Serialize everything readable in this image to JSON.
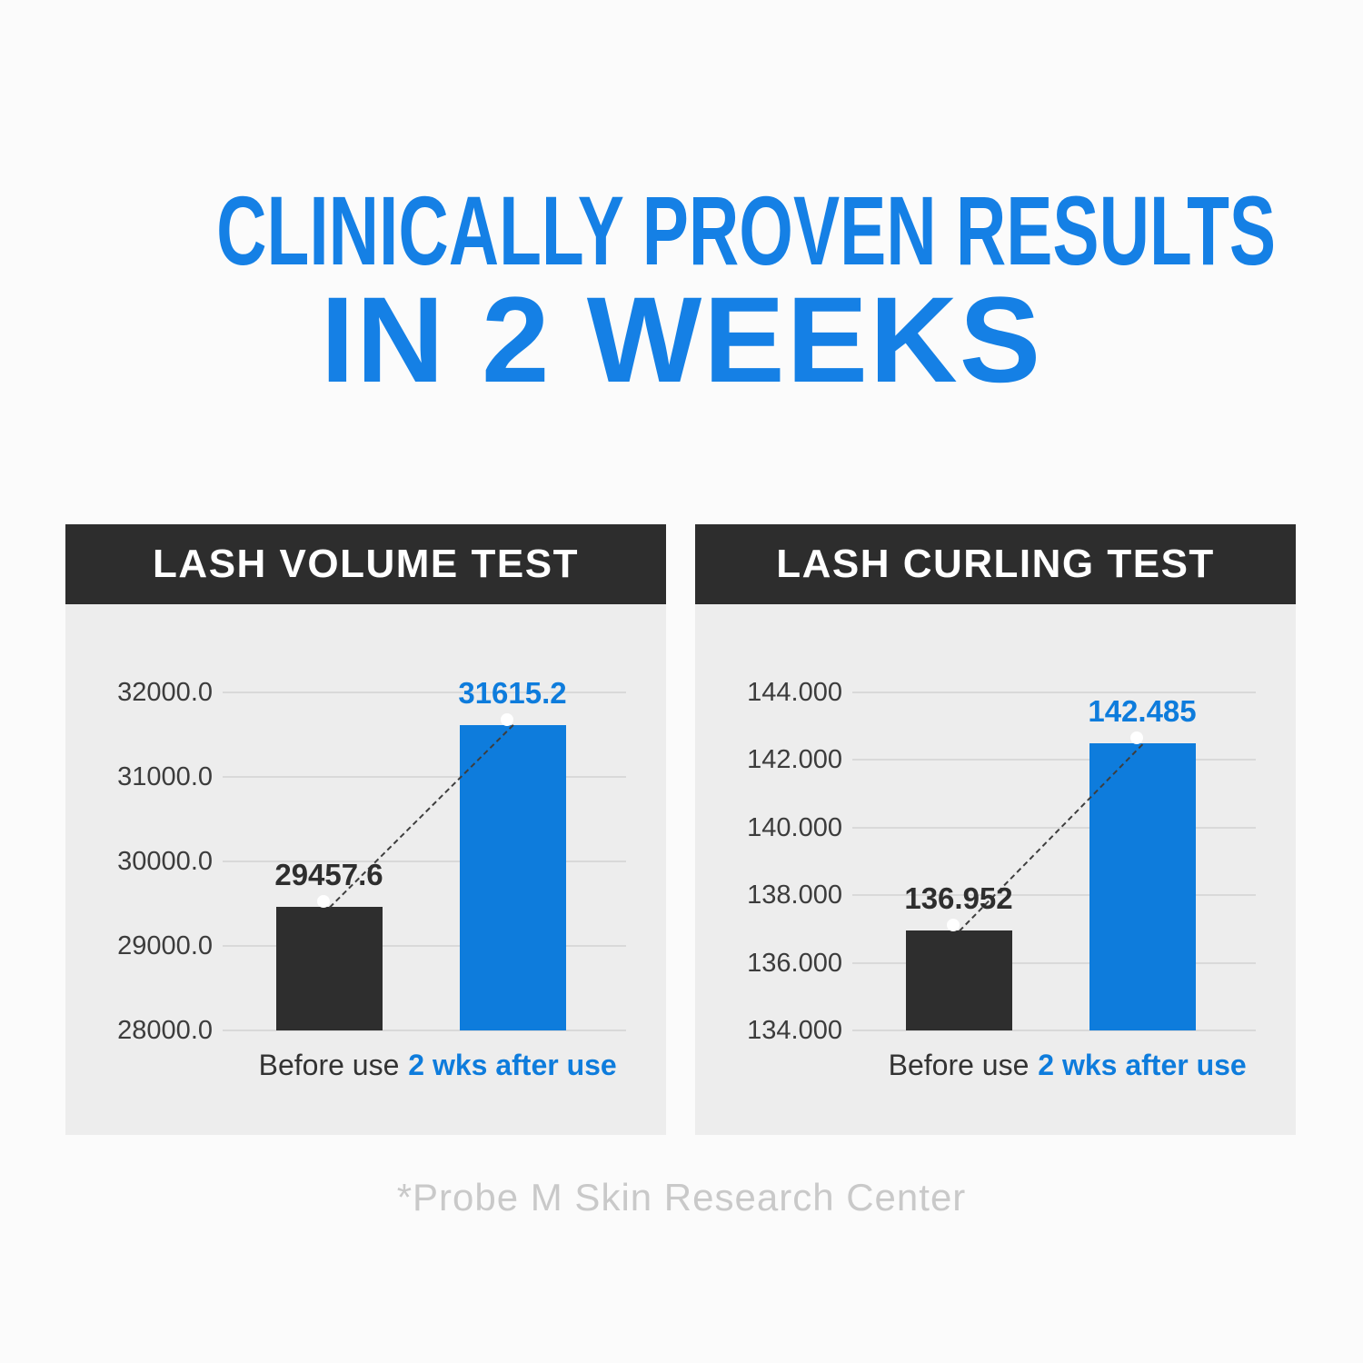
{
  "title": {
    "line1": "CLINICALLY PROVEN RESULTS",
    "line2": "IN 2 WEEKS"
  },
  "footer": {
    "text": "*Probe M Skin Research Center"
  },
  "colors": {
    "page_bg": "#fbfbfb",
    "panel_bg": "#ededed",
    "panel_header_bg": "#2d2d2d",
    "title_blue": "#1580e5",
    "accent_blue": "#0e7cdc",
    "dark_bar": "#2e2e2e",
    "gridline": "#d9d9d9",
    "tick_text": "#3c3c3c",
    "before_label_text": "#333333",
    "footer_text": "#c9c9c9",
    "connector_line": "#3e3e3e"
  },
  "chart_data": [
    {
      "type": "bar",
      "title": "LASH VOLUME TEST",
      "categories": [
        "Before use",
        "2 wks after use"
      ],
      "values": [
        29457.6,
        31615.2
      ],
      "value_labels": [
        "29457.6",
        "31615.2"
      ],
      "ylim": [
        28000,
        32000
      ],
      "yticks": [
        "32000.0",
        "31000.0",
        "30000.0",
        "29000.0",
        "28000.0"
      ],
      "xlabel": "",
      "ylabel": "",
      "grid": true,
      "legend": "none",
      "bar_colors": [
        "#2e2e2e",
        "#0e7cdc"
      ],
      "category_colors": [
        "#333333",
        "#0e7cdc"
      ],
      "annotations": "dashed trend line connecting dot markers on bar tops"
    },
    {
      "type": "bar",
      "title": "LASH CURLING TEST",
      "categories": [
        "Before use",
        "2 wks after use"
      ],
      "values": [
        136.952,
        142.485
      ],
      "value_labels": [
        "136.952",
        "142.485"
      ],
      "ylim": [
        134,
        144
      ],
      "yticks": [
        "144.000",
        "142.000",
        "140.000",
        "138.000",
        "136.000",
        "134.000"
      ],
      "xlabel": "",
      "ylabel": "",
      "grid": true,
      "legend": "none",
      "bar_colors": [
        "#2e2e2e",
        "#0e7cdc"
      ],
      "category_colors": [
        "#333333",
        "#0e7cdc"
      ],
      "annotations": "dashed trend line connecting dot markers on bar tops"
    }
  ]
}
